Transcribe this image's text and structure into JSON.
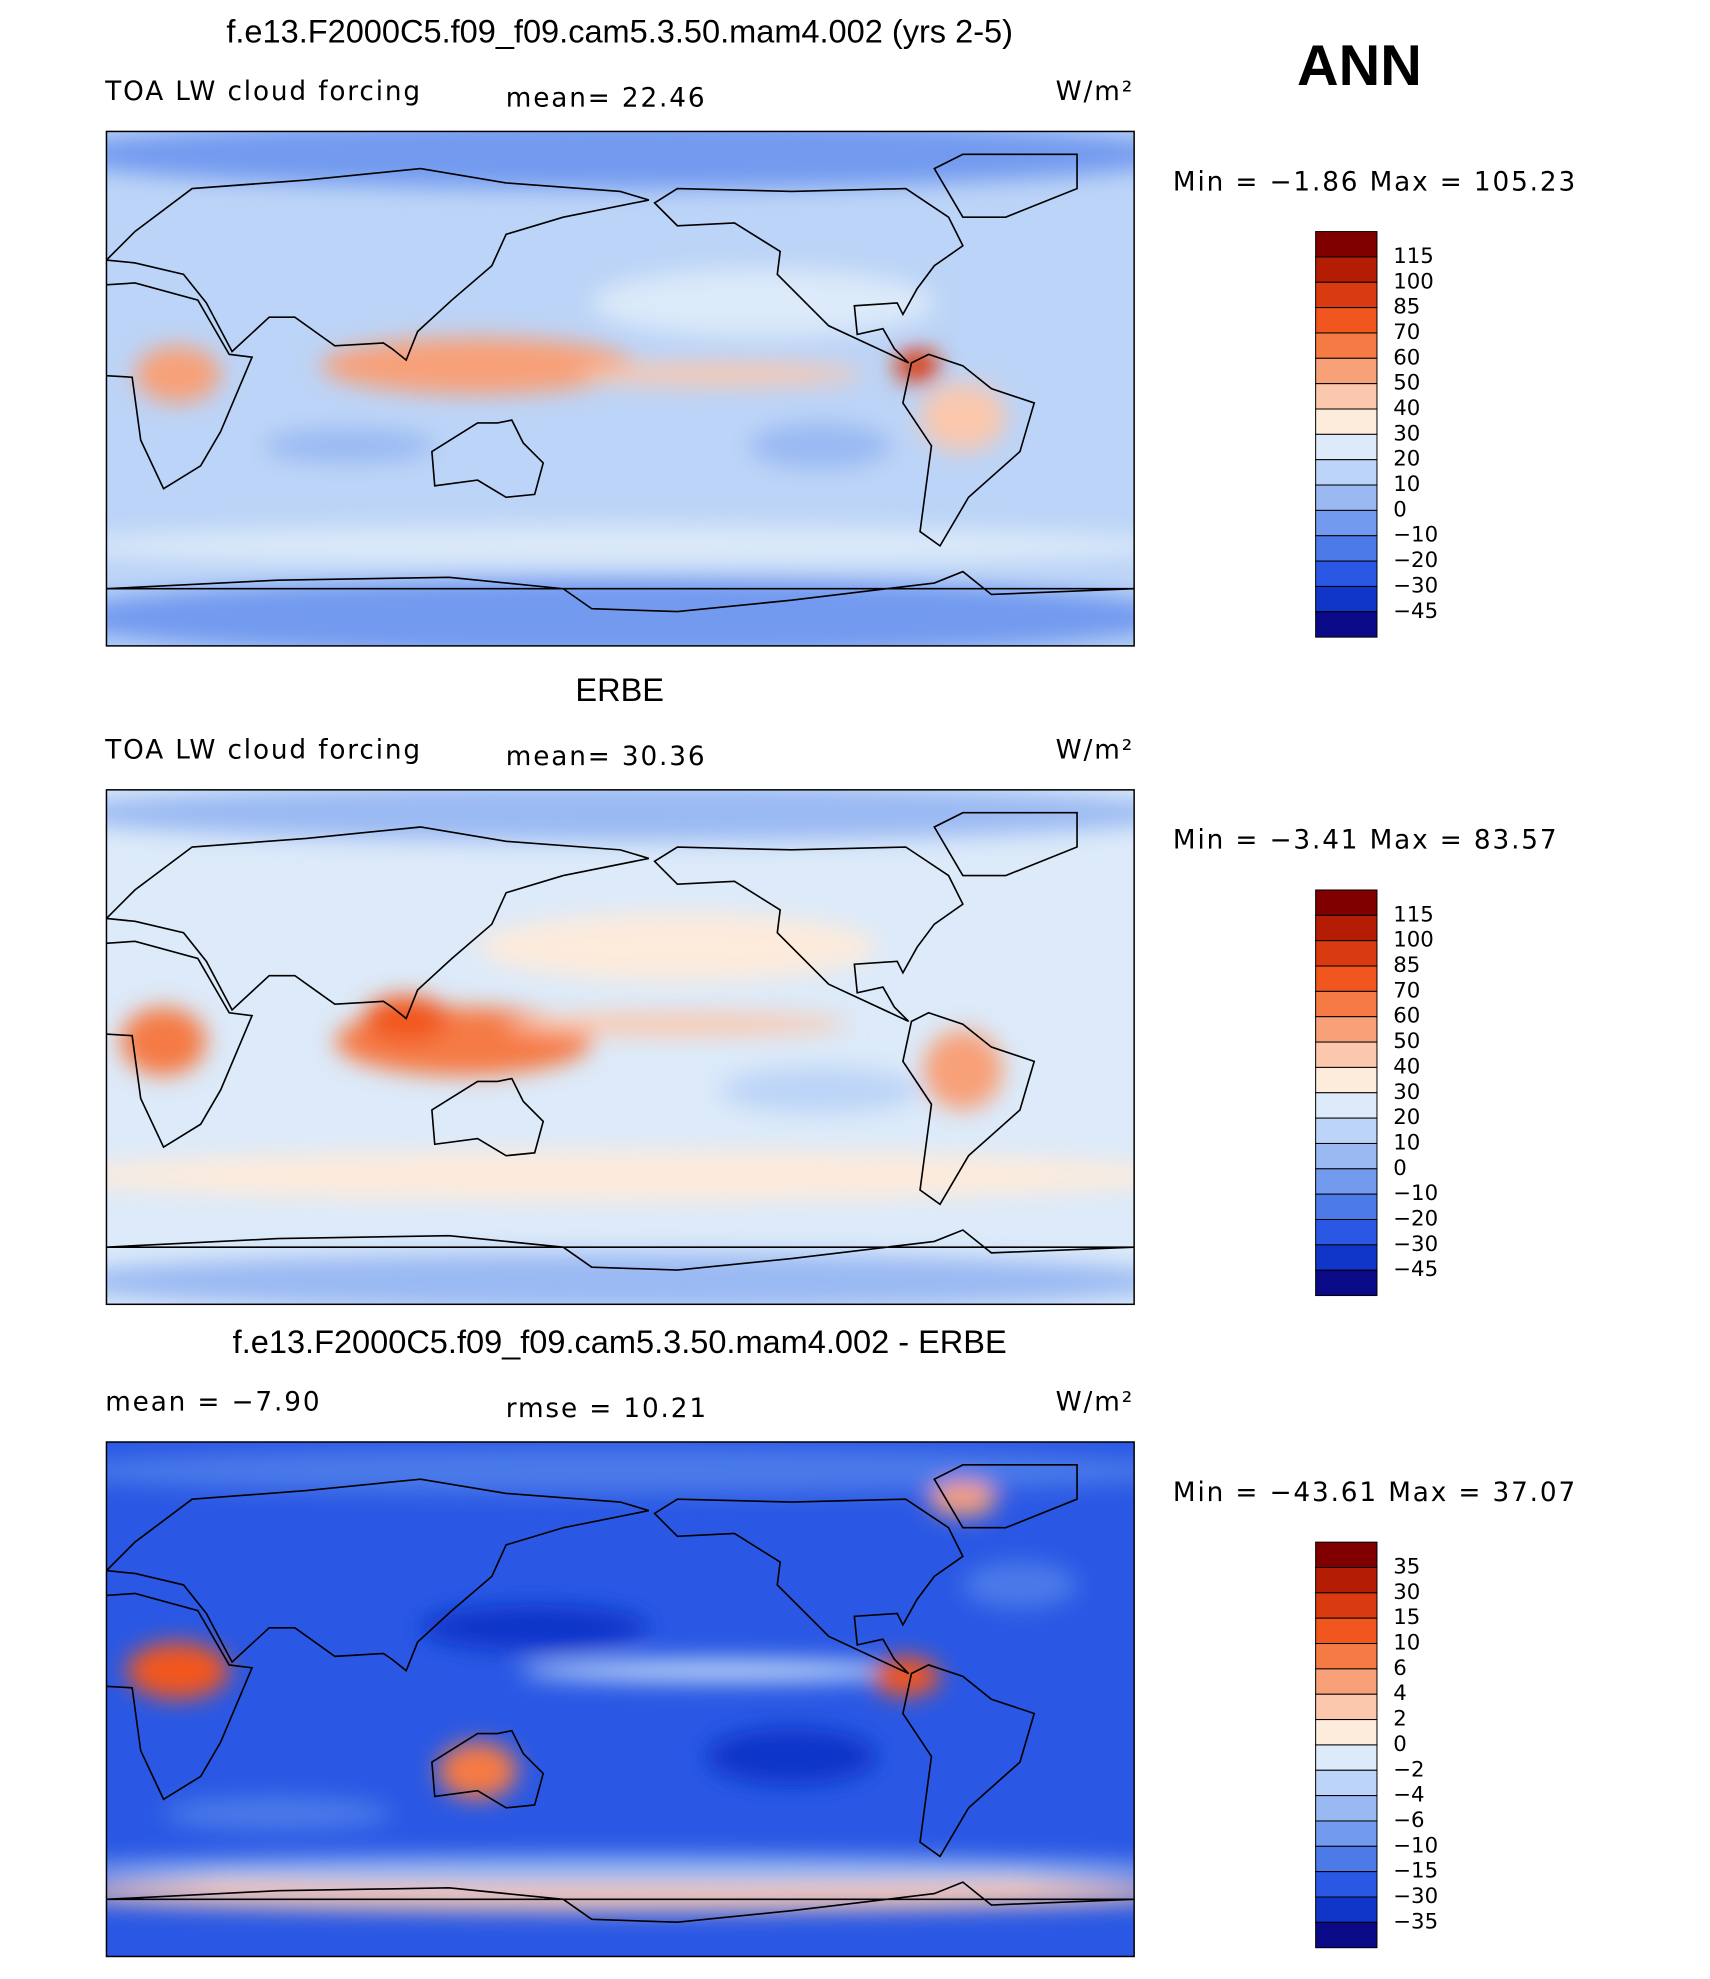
{
  "season": "ANN",
  "panels": [
    {
      "title": "f.e13.F2000C5.f09_f09.cam5.3.50.mam4.002 (yrs 2-5)",
      "left_label": "TOA LW cloud forcing",
      "center_label": "mean=  22.46",
      "units": "W/m²",
      "min_max": "Min =   −1.86  Max  =  105.23",
      "colorbar_labels": [
        "115",
        "100",
        "85",
        "70",
        "60",
        "50",
        "40",
        "30",
        "20",
        "10",
        "0",
        "−10",
        "−20",
        "−30",
        "−45"
      ]
    },
    {
      "title": "ERBE",
      "left_label": "TOA LW cloud forcing",
      "center_label": "mean=  30.36",
      "units": "W/m²",
      "min_max": "Min =   −3.41  Max  =   83.57",
      "colorbar_labels": [
        "115",
        "100",
        "85",
        "70",
        "60",
        "50",
        "40",
        "30",
        "20",
        "10",
        "0",
        "−10",
        "−20",
        "−30",
        "−45"
      ]
    },
    {
      "title": "f.e13.F2000C5.f09_f09.cam5.3.50.mam4.002 - ERBE",
      "left_label": "mean  =   −7.90",
      "center_label": "rmse  =   10.21",
      "units": "W/m²",
      "min_max": "Min  = −43.61  Max  =   37.07",
      "colorbar_labels": [
        "35",
        "30",
        "15",
        "10",
        "6",
        "4",
        "2",
        "0",
        "−2",
        "−4",
        "−6",
        "−10",
        "−15",
        "−30",
        "−35"
      ]
    }
  ]
}
